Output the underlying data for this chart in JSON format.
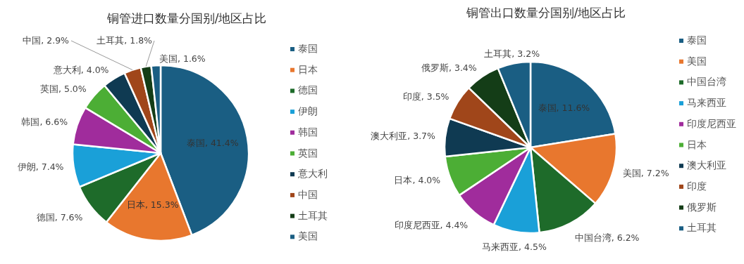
{
  "chart_data": [
    {
      "type": "pie",
      "title": "铜管进口数量分国别/地区占比",
      "categories": [
        "泰国",
        "日本",
        "德国",
        "伊朗",
        "韩国",
        "英国",
        "意大利",
        "中国",
        "土耳其",
        "美国"
      ],
      "values": [
        41.4,
        15.3,
        7.6,
        7.4,
        6.6,
        5.0,
        4.0,
        2.9,
        1.8,
        1.6
      ],
      "value_labels": [
        ", 41.4%",
        ", 15.3%",
        ", 7.6%",
        ", 7.4%",
        ", 6.6%",
        ", 5.0%",
        ", 4.0%",
        ", 2.9%",
        ", 1.8%",
        ", 1.6%"
      ],
      "colors": [
        "#1a5e83",
        "#e8772e",
        "#1e6b2a",
        "#1aa0d8",
        "#a02c9c",
        "#4cae35",
        "#0f3a52",
        "#a0461a",
        "#143d17",
        "#1a5e83"
      ],
      "legend": "right"
    },
    {
      "type": "pie",
      "title": "铜管出口数量分国别/地区占比",
      "categories": [
        "泰国",
        "美国",
        "中国台湾",
        "马来西亚",
        "印度尼西亚",
        "日本",
        "澳大利亚",
        "印度",
        "俄罗斯",
        "土耳其"
      ],
      "values": [
        11.6,
        7.2,
        6.2,
        4.5,
        4.4,
        4.0,
        3.7,
        3.5,
        3.4,
        3.2
      ],
      "value_labels": [
        ", 11.6%",
        ", 7.2%",
        ", 6.2%",
        ", 4.5%",
        ", 4.4%",
        ", 4.0%",
        ", 3.7%",
        ", 3.5%",
        ", 3.4%",
        ", 3.2%"
      ],
      "colors": [
        "#1a5e83",
        "#e8772e",
        "#1e6b2a",
        "#1aa0d8",
        "#a02c9c",
        "#4cae35",
        "#0f3a52",
        "#a0461a",
        "#143d17",
        "#1a5e83"
      ],
      "legend": "right"
    }
  ]
}
